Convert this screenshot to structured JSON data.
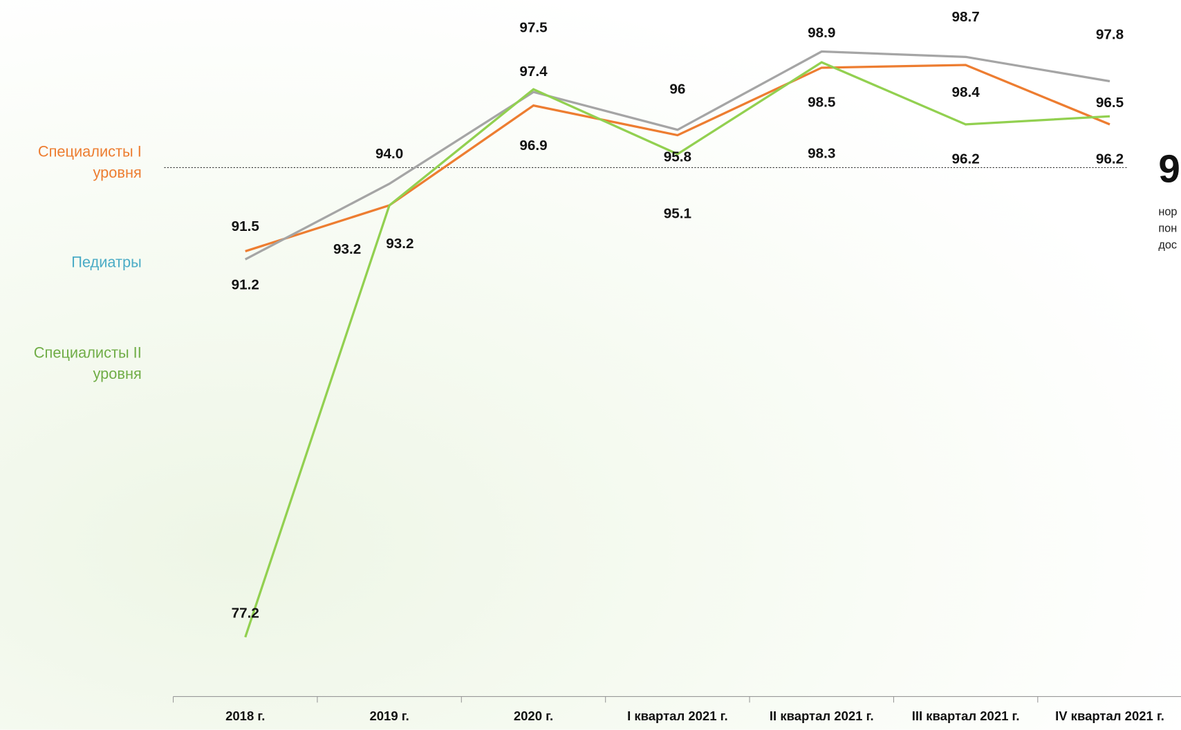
{
  "chart_data": {
    "type": "line",
    "categories": [
      "2018 г.",
      "2019 г.",
      "2020 г.",
      "I квартал 2021 г.",
      "II квартал 2021 г.",
      "III квартал 2021 г.",
      "IV квартал 2021 г."
    ],
    "series": [
      {
        "name": "Специалисты I уровня",
        "color": "#ED7D31",
        "legend_color": "#ED7D31",
        "values": [
          91.5,
          93.2,
          96.9,
          95.8,
          98.3,
          98.4,
          96.2
        ],
        "value_labels": [
          "91.5",
          "93.2",
          "96.9",
          "95.8",
          "98.3",
          "98.4",
          "96.2"
        ]
      },
      {
        "name": "Педиатры",
        "color": "#A5A5A5",
        "legend_color": "#4BACC6",
        "values": [
          91.2,
          94.0,
          97.4,
          96,
          98.9,
          98.7,
          97.8
        ],
        "value_labels": [
          "91.2",
          "94.0",
          "97.4",
          "96",
          "98.9",
          "98.7",
          "97.8"
        ]
      },
      {
        "name": "Специалисты II уровня",
        "color": "#92D050",
        "legend_color": "#70AD47",
        "values": [
          77.2,
          93.2,
          97.5,
          95.1,
          98.5,
          96.2,
          96.5
        ],
        "value_labels": [
          "77.2",
          "93.2",
          "97.5",
          "95.1",
          "98.5",
          "96.2",
          "96.5"
        ]
      }
    ],
    "ylim": [
      75,
      100
    ],
    "reference_line": 94.6,
    "annotations": [
      "9",
      "нор",
      "пон",
      "дос"
    ]
  }
}
